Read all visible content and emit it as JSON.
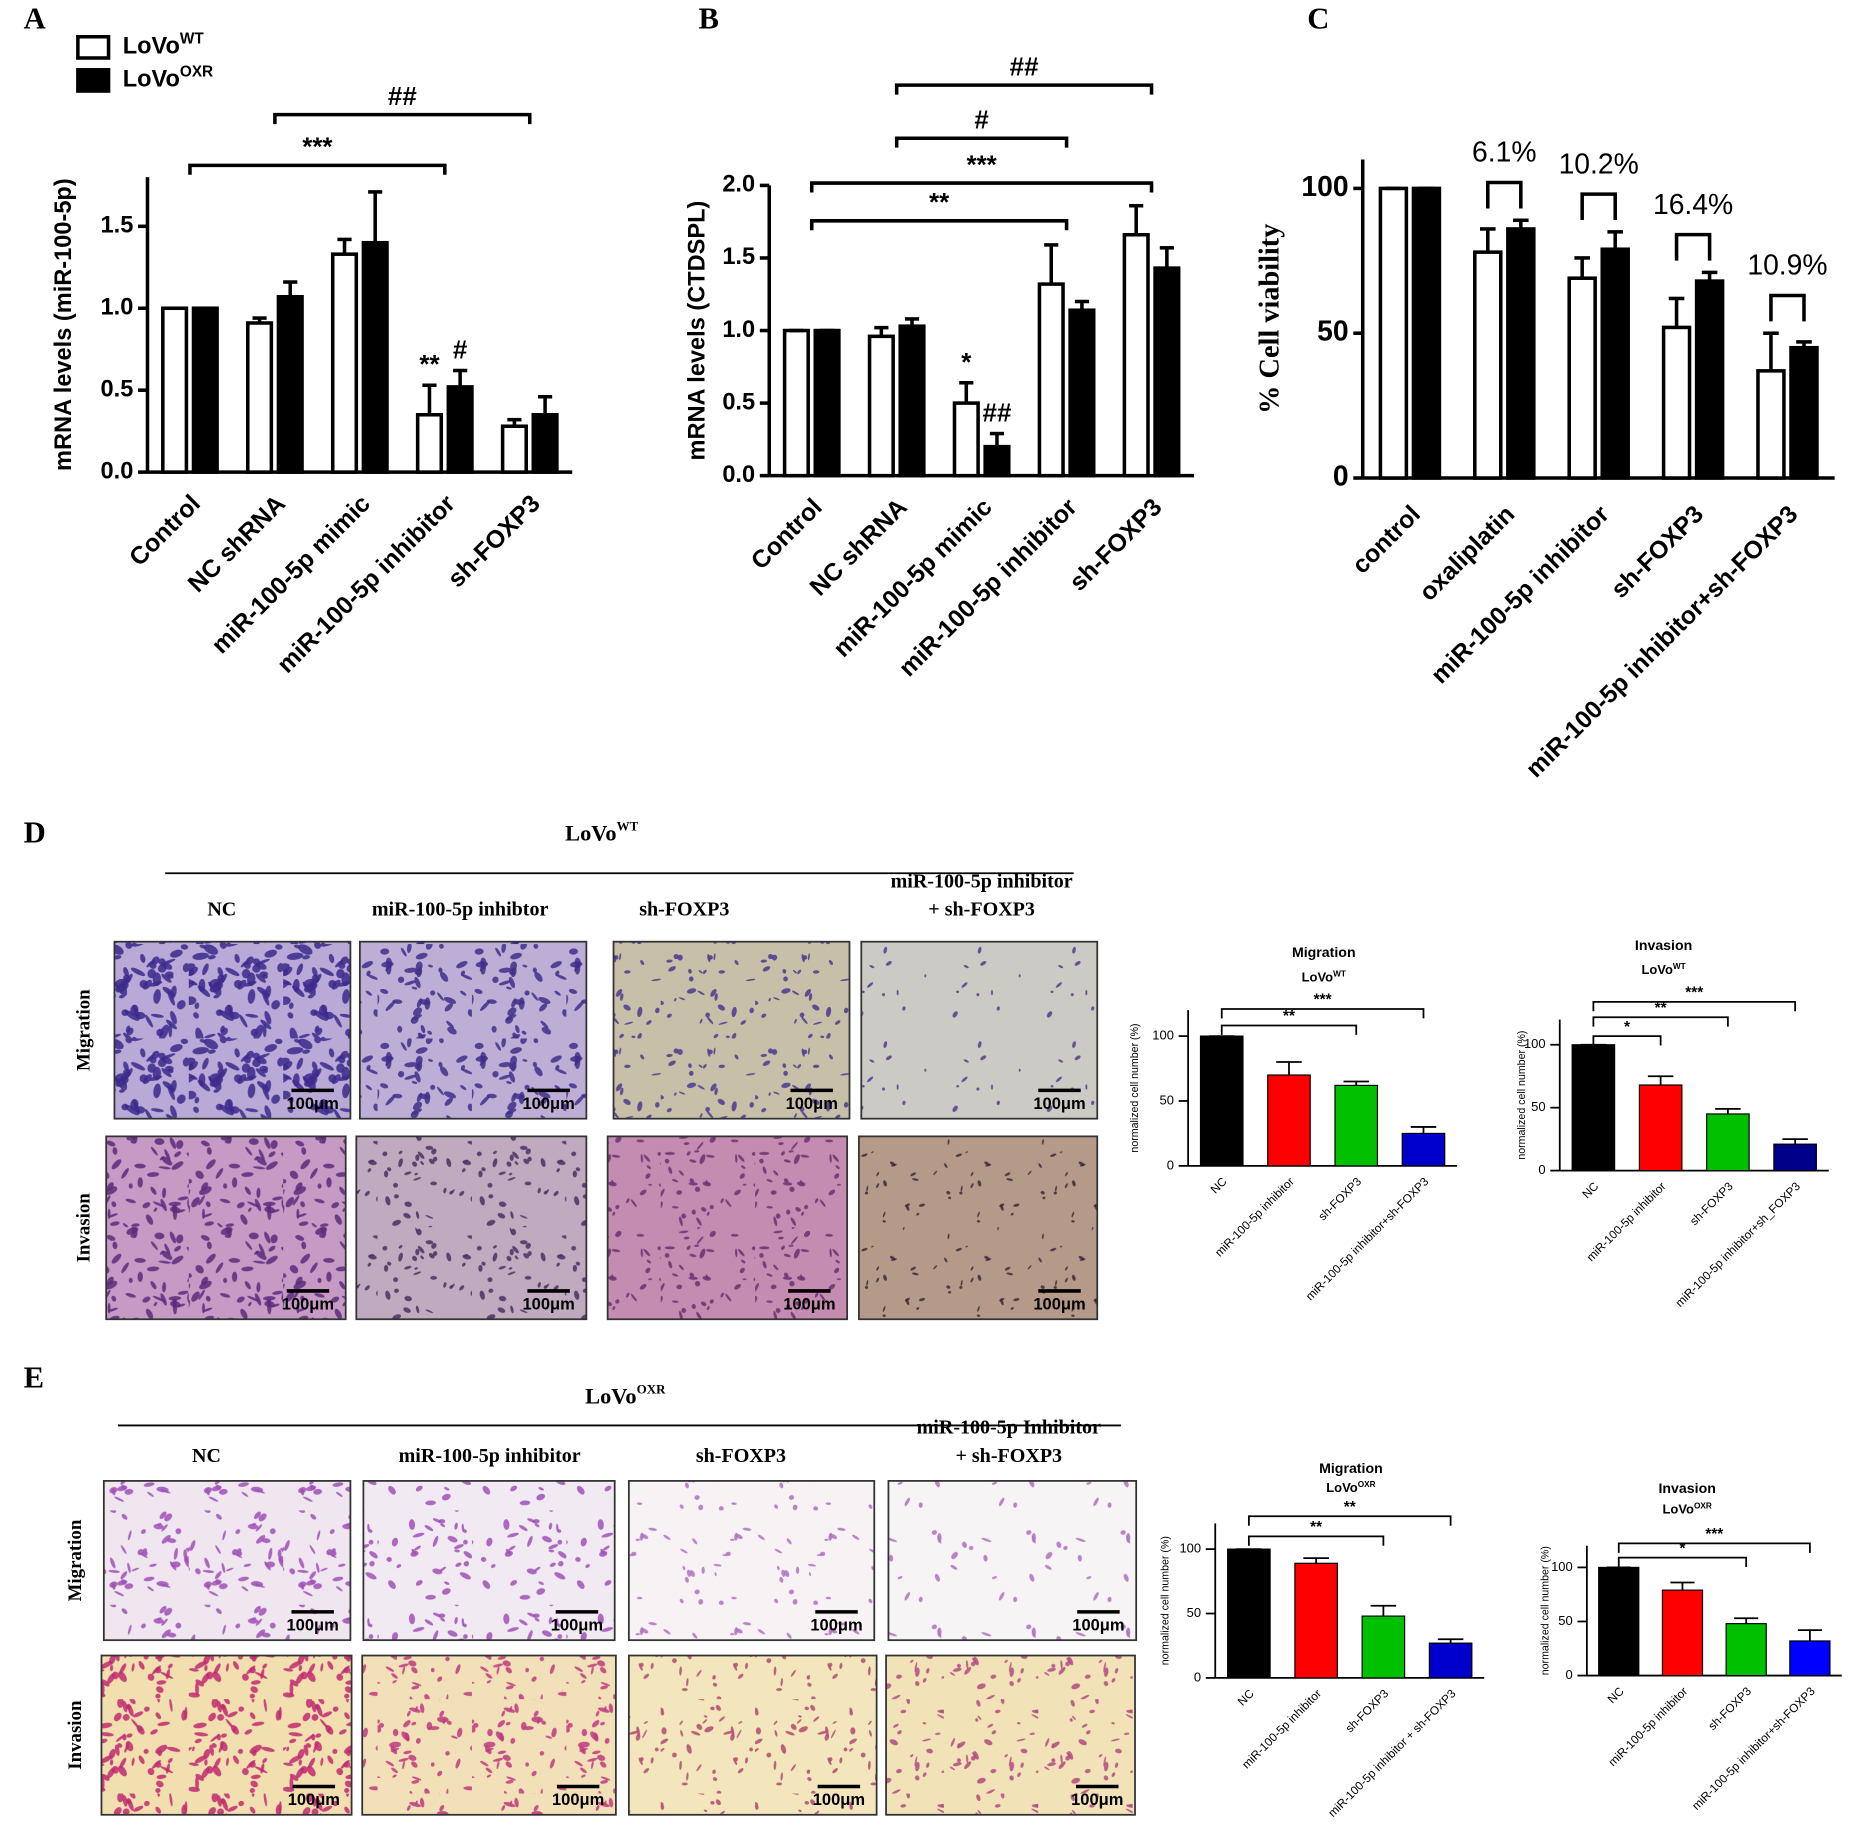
{
  "chart_data": [
    {
      "type": "bar",
      "ylabel": "mRNA levels (miR-100-5p)",
      "categories": [
        "Control",
        "NC shRNA",
        "miR-100-5p mimic",
        "miR-100-5p inhibitor",
        "sh-FOXP3"
      ],
      "series": [
        {
          "name": "LoVo",
          "sup": "WT",
          "color": "#ffffff",
          "values": [
            1.0,
            0.91,
            1.33,
            0.35,
            0.28
          ],
          "errors": [
            0,
            0.03,
            0.09,
            0.18,
            0.04
          ],
          "labels": [
            null,
            null,
            null,
            "**",
            null
          ]
        },
        {
          "name": "LoVo",
          "sup": "OXR",
          "color": "#000000",
          "values": [
            1.0,
            1.07,
            1.4,
            0.52,
            0.35
          ],
          "errors": [
            0,
            0.09,
            0.31,
            0.1,
            0.11
          ],
          "labels": [
            null,
            null,
            null,
            "#",
            null
          ]
        }
      ],
      "ylim": [
        0,
        1.8
      ],
      "yticks": [
        {
          "value": 0,
          "label": "0.0"
        },
        0.5,
        {
          "value": 1,
          "label": "1.0"
        },
        1.5
      ],
      "annotations": [
        {
          "text": "***",
          "from": "Control",
          "to": "miR-100-5p inhibitor"
        },
        {
          "text": "##",
          "from": "NC shRNA",
          "to": "sh-FOXP3"
        }
      ]
    },
    {
      "type": "bar",
      "ylabel": "mRNA levels (CTDSPL)",
      "categories": [
        "Control",
        "NC shRNA",
        "miR-100-5p mimic",
        "miR-100-5p inhibitor",
        "sh-FOXP3"
      ],
      "series": [
        {
          "color": "#ffffff",
          "values": [
            1.0,
            0.96,
            0.5,
            1.32,
            1.66
          ],
          "errors": [
            0,
            0.06,
            0.14,
            0.27,
            0.2
          ],
          "labels": [
            null,
            null,
            "*",
            null,
            null
          ]
        },
        {
          "color": "#000000",
          "values": [
            1.0,
            1.03,
            0.2,
            1.14,
            1.43
          ],
          "errors": [
            0,
            0.05,
            0.09,
            0.06,
            0.14
          ],
          "labels": [
            null,
            null,
            "##",
            null,
            null
          ]
        }
      ],
      "ylim": [
        0,
        2.0
      ],
      "yticks": [
        {
          "value": 0,
          "label": "0.0"
        },
        0.5,
        {
          "value": 1,
          "label": "1.0"
        },
        1.5,
        {
          "value": 2,
          "label": "2.0"
        }
      ],
      "annotations": [
        {
          "text": "**",
          "from": "Control",
          "to": "miR-100-5p inhibitor"
        },
        {
          "text": "***",
          "from": "Control",
          "to": "sh-FOXP3"
        },
        {
          "text": "#",
          "from": "NC shRNA",
          "to": "miR-100-5p inhibitor"
        },
        {
          "text": "##",
          "from": "NC shRNA",
          "to": "sh-FOXP3"
        }
      ]
    },
    {
      "type": "bar",
      "ylabel": "% Cell viability",
      "categories": [
        "control",
        "oxaliplatin",
        "miR-100-5p inhibitor",
        "sh-FOXP3",
        "miR-100-5p inhibitor+sh-FOXP3"
      ],
      "series": [
        {
          "color": "#ffffff",
          "values": [
            100,
            78,
            69,
            52,
            37
          ],
          "errors": [
            0,
            8,
            7,
            10,
            13
          ]
        },
        {
          "color": "#000000",
          "values": [
            100,
            86,
            79,
            68,
            45
          ],
          "errors": [
            0,
            3,
            6,
            3,
            2
          ]
        }
      ],
      "pair_labels": [
        null,
        "6.1%",
        "10.2%",
        "16.4%",
        "10.9%"
      ],
      "ylim": [
        0,
        110
      ],
      "yticks": [
        0,
        50,
        100
      ]
    },
    {
      "type": "bar",
      "title": "Migration",
      "subtitle": "LoVo",
      "subtitle_sup": "WT",
      "ylabel": "normalized cell number (%)",
      "categories": [
        "NC",
        "miR-100-5p inhibitor",
        "sh-FOXP3",
        "miR-100-5p inhibitor+sh-FOXP3"
      ],
      "values": [
        100,
        70,
        62,
        25
      ],
      "errors": [
        0,
        10,
        3,
        5
      ],
      "colors": [
        "#000000",
        "#ff0000",
        "#00c000",
        "#0000cc"
      ],
      "ylim": [
        0,
        120
      ],
      "yticks": [
        0,
        50,
        100
      ],
      "annotations": [
        {
          "text": "**",
          "from": "NC",
          "to": "sh-FOXP3"
        },
        {
          "text": "***",
          "from": "NC",
          "to": "miR-100-5p inhibitor+sh-FOXP3"
        }
      ]
    },
    {
      "type": "bar",
      "title": "Invasion",
      "subtitle": "LoVo",
      "subtitle_sup": "WT",
      "ylabel": "normalized cell number (%)",
      "categories": [
        "NC",
        "miR-100-5p inhibitor",
        "sh-FOXP3",
        "miR-100-5p inhibitor+sh_FOXP3"
      ],
      "values": [
        100,
        68,
        45,
        21
      ],
      "errors": [
        0,
        7,
        4,
        4
      ],
      "colors": [
        "#000000",
        "#ff0000",
        "#00c000",
        "#000088"
      ],
      "ylim": [
        0,
        120
      ],
      "yticks": [
        0,
        50,
        100
      ],
      "annotations": [
        {
          "text": "*",
          "from": "NC",
          "to": "miR-100-5p inhibitor"
        },
        {
          "text": "**",
          "from": "NC",
          "to": "sh-FOXP3"
        },
        {
          "text": "***",
          "from": "NC",
          "to": "miR-100-5p inhibitor+sh_FOXP3"
        }
      ]
    },
    {
      "type": "bar",
      "title": "Migration",
      "subtitle": "LoVo",
      "subtitle_sup": "OXR",
      "ylabel": "normalized cell number (%)",
      "categories": [
        "NC",
        "miR-100-5p inhibitor",
        "sh-FOXP3",
        "miR-100-5p inhibitor + sh-FOXP3"
      ],
      "values": [
        100,
        89,
        48,
        27
      ],
      "errors": [
        0,
        4,
        8,
        3
      ],
      "colors": [
        "#000000",
        "#ff0000",
        "#00c000",
        "#0000cc"
      ],
      "ylim": [
        0,
        120
      ],
      "yticks": [
        0,
        50,
        100
      ],
      "annotations": [
        {
          "text": "**",
          "from": "NC",
          "to": "sh-FOXP3"
        },
        {
          "text": "**",
          "from": "NC",
          "to": "miR-100-5p inhibitor + sh-FOXP3"
        }
      ]
    },
    {
      "type": "bar",
      "title": "Invasion",
      "subtitle": "LoVo",
      "subtitle_sup": "OXR",
      "ylabel": "normalized cell number (%)",
      "categories": [
        "NC",
        "miR-100-5p inhibitor",
        "sh-FOXP3",
        "miR-100-5p inhibitor+sh-FOXP3"
      ],
      "values": [
        100,
        79,
        48,
        32
      ],
      "errors": [
        0,
        7,
        5,
        10
      ],
      "colors": [
        "#000000",
        "#ff0000",
        "#00c000",
        "#0000ff"
      ],
      "ylim": [
        0,
        120
      ],
      "yticks": [
        0,
        50,
        100
      ],
      "annotations": [
        {
          "text": "*",
          "from": "NC",
          "to": "sh-FOXP3"
        },
        {
          "text": "***",
          "from": "NC",
          "to": "miR-100-5p inhibitor+sh-FOXP3"
        }
      ]
    }
  ],
  "figure": {
    "panel_letters": [
      "A",
      "B",
      "C",
      "D",
      "E"
    ],
    "micrographs": [
      {
        "header": "LoVo",
        "header_sup": "WT",
        "columns": [
          [
            "NC"
          ],
          [
            "miR-100-5p inhibtor"
          ],
          [
            "sh-FOXP3"
          ],
          [
            "miR-100-5p inhibitor",
            "+ sh-FOXP3"
          ]
        ],
        "rows": [
          "Migration",
          "Invasion"
        ],
        "scale_bar": "100μm"
      },
      {
        "header": "LoVo",
        "header_sup": "OXR",
        "columns": [
          [
            "NC"
          ],
          [
            "miR-100-5p inhibitor"
          ],
          [
            "sh-FOXP3"
          ],
          [
            "miR-100-5p Inhibitor",
            "+ sh-FOXP3"
          ]
        ],
        "rows": [
          "Migration",
          "Invasion"
        ],
        "scale_bar": "100μm"
      }
    ]
  }
}
